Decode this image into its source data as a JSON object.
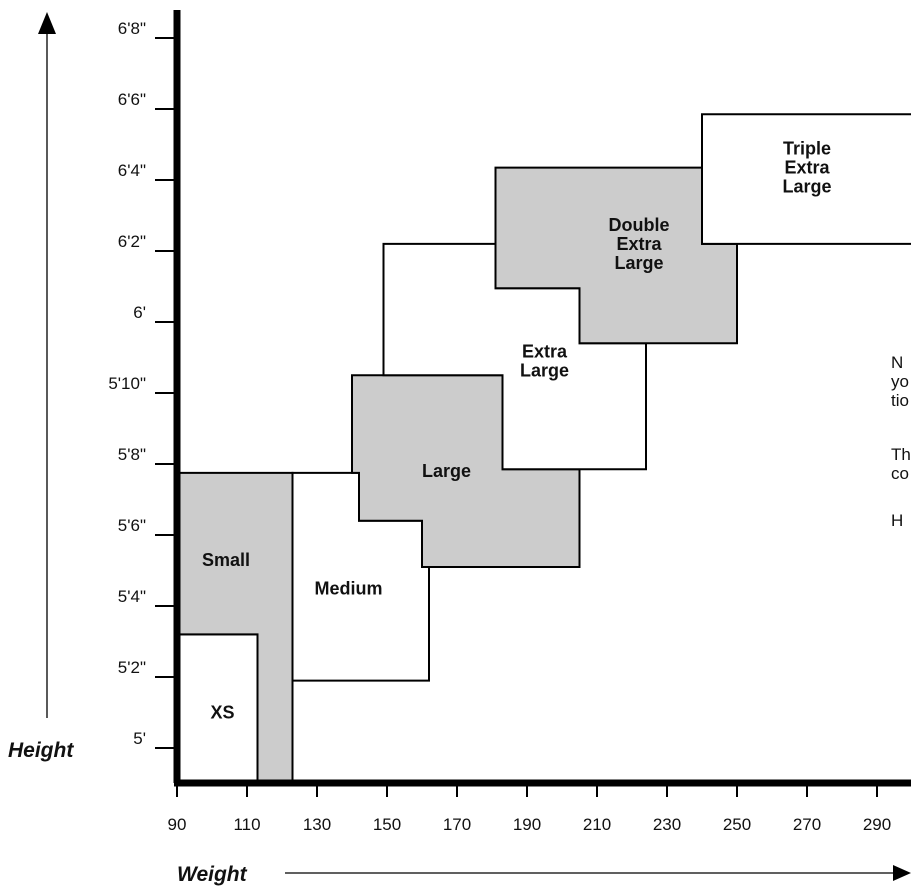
{
  "chart_data": {
    "type": "size-chart",
    "xlabel": "Weight",
    "ylabel": "Height",
    "x_ticks": [
      90,
      110,
      130,
      150,
      170,
      190,
      210,
      230,
      250,
      270,
      290
    ],
    "y_ticks": [
      {
        "label": "5'",
        "inches": 60
      },
      {
        "label": "5'2\"",
        "inches": 62
      },
      {
        "label": "5'4\"",
        "inches": 64
      },
      {
        "label": "5'6\"",
        "inches": 66
      },
      {
        "label": "5'8\"",
        "inches": 68
      },
      {
        "label": "5'10\"",
        "inches": 70
      },
      {
        "label": "6'",
        "inches": 72
      },
      {
        "label": "6'2\"",
        "inches": 74
      },
      {
        "label": "6'4\"",
        "inches": 76
      },
      {
        "label": "6'6\"",
        "inches": 78
      },
      {
        "label": "6'8\"",
        "inches": 80
      }
    ],
    "zones": [
      {
        "name": "XS",
        "lines": [
          "XS"
        ],
        "fill": "#ffffff",
        "polygon": [
          [
            90,
            59.0
          ],
          [
            90,
            63.2
          ],
          [
            113,
            63.2
          ],
          [
            113,
            59.0
          ]
        ],
        "label_at": [
          103,
          61.0
        ]
      },
      {
        "name": "Small",
        "lines": [
          "Small"
        ],
        "fill": "#cccccc",
        "polygon": [
          [
            90,
            63.2
          ],
          [
            90,
            67.75
          ],
          [
            123,
            67.75
          ],
          [
            123,
            59.0
          ],
          [
            113,
            59.0
          ],
          [
            113,
            63.2
          ]
        ],
        "label_at": [
          104,
          65.3
        ]
      },
      {
        "name": "Medium",
        "lines": [
          "Medium"
        ],
        "fill": "#ffffff",
        "polygon": [
          [
            123,
            61.9
          ],
          [
            123,
            67.75
          ],
          [
            142,
            67.75
          ],
          [
            142,
            66.4
          ],
          [
            162,
            66.4
          ],
          [
            162,
            61.9
          ]
        ],
        "label_at": [
          139,
          64.5
        ]
      },
      {
        "name": "Large",
        "lines": [
          "Large"
        ],
        "fill": "#cccccc",
        "polygon": [
          [
            142,
            66.4
          ],
          [
            142,
            67.75
          ],
          [
            140,
            67.75
          ],
          [
            140,
            70.5
          ],
          [
            183,
            70.5
          ],
          [
            183,
            67.85
          ],
          [
            205,
            67.85
          ],
          [
            205,
            65.1
          ],
          [
            160,
            65.1
          ],
          [
            160,
            66.4
          ]
        ],
        "label_at": [
          167,
          67.8
        ]
      },
      {
        "name": "Extra Large",
        "lines": [
          "Extra",
          "Large"
        ],
        "fill": "#ffffff",
        "polygon": [
          [
            149,
            70.5
          ],
          [
            149,
            74.2
          ],
          [
            181,
            74.2
          ],
          [
            181,
            72.95
          ],
          [
            205,
            72.95
          ],
          [
            205,
            71.4
          ],
          [
            224,
            71.4
          ],
          [
            224,
            67.85
          ],
          [
            183,
            67.85
          ],
          [
            183,
            70.5
          ]
        ],
        "label_at": [
          195,
          70.9
        ]
      },
      {
        "name": "Double Extra Large",
        "lines": [
          "Double",
          "Extra",
          "Large"
        ],
        "fill": "#cccccc",
        "polygon": [
          [
            181,
            72.95
          ],
          [
            181,
            76.35
          ],
          [
            240,
            76.35
          ],
          [
            240,
            74.2
          ],
          [
            250,
            74.2
          ],
          [
            250,
            71.4
          ],
          [
            205,
            71.4
          ],
          [
            205,
            72.95
          ]
        ],
        "label_at": [
          222,
          74.2
        ]
      },
      {
        "name": "Triple Extra Large",
        "lines": [
          "Triple",
          "Extra",
          "Large"
        ],
        "fill": "#ffffff",
        "polygon": [
          [
            240,
            74.2
          ],
          [
            240,
            77.85
          ],
          [
            300,
            77.85
          ],
          [
            300,
            74.2
          ]
        ],
        "label_at": [
          270,
          76.35
        ]
      }
    ]
  },
  "note_fragments": [
    "N",
    "yo",
    "tio",
    "Th",
    "co",
    "H"
  ]
}
